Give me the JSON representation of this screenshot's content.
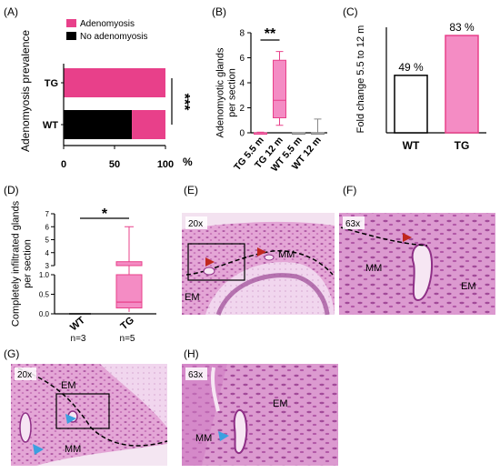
{
  "panels": {
    "a": {
      "letter": "(A)"
    },
    "b": {
      "letter": "(B)"
    },
    "c": {
      "letter": "(C)"
    },
    "d": {
      "letter": "(D)"
    },
    "e": {
      "letter": "(E)",
      "mag": "20x",
      "labels": {
        "mm": "MM",
        "em": "EM"
      }
    },
    "f": {
      "letter": "(F)",
      "mag": "63x",
      "labels": {
        "mm": "MM",
        "em": "EM"
      }
    },
    "g": {
      "letter": "(G)",
      "mag": "20x",
      "labels": {
        "mm": "MM",
        "em": "EM"
      }
    },
    "h": {
      "letter": "(H)",
      "mag": "63x",
      "labels": {
        "mm": "MM",
        "em": "EM"
      }
    }
  },
  "colors": {
    "pink": "#e8408a",
    "pink_light": "#f48cc4",
    "black": "#000000",
    "arrow_red": "#c0281e",
    "arrow_blue": "#3ba0e0",
    "tissue": "#d993c8",
    "tissue_dark": "#b25aa6"
  },
  "chart_data": [
    {
      "id": "A",
      "type": "bar",
      "orientation": "horizontal",
      "stacked": true,
      "categories": [
        "TG",
        "WT"
      ],
      "series": [
        {
          "name": "Adenomyosis",
          "values": [
            100,
            33
          ],
          "color": "#e8408a"
        },
        {
          "name": "No adenomyosis",
          "values": [
            0,
            67
          ],
          "color": "#000000"
        }
      ],
      "ylabel": "Adenomyosis prevalence",
      "xlabel": "%",
      "xticks": [
        "0",
        "50",
        "100"
      ],
      "xlim": [
        0,
        100
      ],
      "significance": "***",
      "legend": "top"
    },
    {
      "id": "B",
      "type": "box",
      "categories": [
        "TG 5.5 m",
        "TG 12 m",
        "WT 5.5 m",
        "WT 12 m"
      ],
      "boxes": [
        {
          "min": 0,
          "q1": 0,
          "median": 0,
          "q3": 0,
          "max": 0.05
        },
        {
          "min": 0.6,
          "q1": 1.2,
          "median": 2.6,
          "q3": 5.8,
          "max": 6.5
        },
        {
          "min": 0,
          "q1": 0,
          "median": 0,
          "q3": 0,
          "max": 0
        },
        {
          "min": 0,
          "q1": 0,
          "median": 0,
          "q3": 0,
          "max": 1.1
        }
      ],
      "ylabel": "Adenomyotic glands per section",
      "yticks": [
        "0",
        "2",
        "4",
        "6",
        "8"
      ],
      "ylim": [
        0,
        8
      ],
      "significance": "**"
    },
    {
      "id": "C",
      "type": "bar",
      "categories": [
        "WT",
        "TG"
      ],
      "values": [
        49,
        83
      ],
      "value_labels": [
        "49 %",
        "83 %"
      ],
      "ylabel": "Fold change 5.5 to 12 m",
      "ylim": [
        0,
        90
      ]
    },
    {
      "id": "D",
      "type": "box",
      "categories": [
        "WT",
        "TG"
      ],
      "category_notes": [
        "n=3",
        "n=5"
      ],
      "boxes": [
        {
          "min": 0,
          "q1": 0,
          "median": 0,
          "q3": 0,
          "max": 0
        },
        {
          "min": 0.05,
          "q1": 0.15,
          "median": 0.3,
          "q3": 3.3,
          "max": 6
        }
      ],
      "ylabel": "Completely infiltrated glands per section",
      "yticks": [
        "0.0",
        "0.5",
        "1.0",
        "3",
        "4",
        "5",
        "6",
        "7"
      ],
      "ylim": [
        0,
        7
      ],
      "axis_break": [
        1.0,
        3
      ],
      "significance": "*"
    }
  ]
}
